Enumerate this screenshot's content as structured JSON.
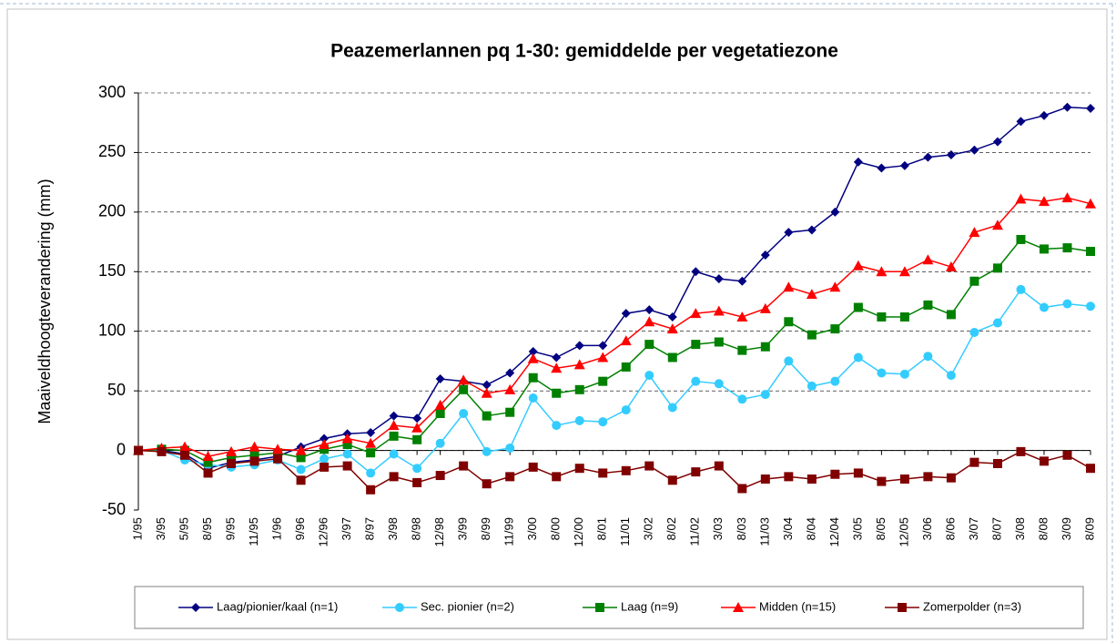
{
  "chart_data": {
    "type": "line",
    "title": "Peazemerlannen pq 1-30: gemiddelde per vegetatiezone",
    "y_label": "Maaiveldhoogteverandering (mm)",
    "categories": [
      "1/95",
      "3/95",
      "5/95",
      "8/95",
      "9/95",
      "11/95",
      "1/96",
      "9/96",
      "12/96",
      "3/97",
      "8/97",
      "3/98",
      "8/98",
      "12/98",
      "3/99",
      "8/99",
      "11/99",
      "3/00",
      "8/00",
      "12/00",
      "8/01",
      "11/01",
      "3/02",
      "8/02",
      "11/02",
      "3/03",
      "8/03",
      "11/03",
      "3/04",
      "8/04",
      "12/04",
      "3/05",
      "8/05",
      "12/05",
      "3/06",
      "8/06",
      "3/07",
      "8/07",
      "3/08",
      "8/08",
      "3/09",
      "8/09"
    ],
    "series": [
      {
        "name": "Laag/pionier/kaal (n=1)",
        "color": "#000080",
        "marker": "diamond",
        "values": [
          0,
          0,
          -3,
          -15,
          -10,
          -8,
          -5,
          3,
          10,
          14,
          15,
          29,
          27,
          60,
          58,
          55,
          65,
          83,
          78,
          88,
          88,
          115,
          118,
          112,
          150,
          144,
          142,
          164,
          183,
          185,
          200,
          242,
          237,
          239,
          246,
          248,
          252,
          259,
          276,
          281,
          288,
          287
        ]
      },
      {
        "name": "Sec. pionier (n=2)",
        "color": "#33ccff",
        "marker": "circle",
        "values": [
          0,
          0,
          -8,
          -12,
          -14,
          -12,
          -8,
          -16,
          -7,
          -3,
          -19,
          -3,
          -15,
          6,
          31,
          -1,
          2,
          44,
          21,
          25,
          24,
          34,
          63,
          36,
          58,
          56,
          43,
          47,
          75,
          54,
          58,
          78,
          65,
          64,
          79,
          63,
          99,
          107,
          135,
          120,
          123,
          121
        ]
      },
      {
        "name": "Laag (n=9)",
        "color": "#008000",
        "marker": "square",
        "values": [
          0,
          1,
          0,
          -10,
          -6,
          -4,
          -2,
          -6,
          1,
          5,
          -2,
          12,
          9,
          31,
          51,
          29,
          32,
          61,
          48,
          51,
          58,
          70,
          89,
          78,
          89,
          91,
          84,
          87,
          108,
          97,
          102,
          120,
          112,
          112,
          122,
          114,
          142,
          153,
          177,
          169,
          170,
          167
        ]
      },
      {
        "name": "Midden (n=15)",
        "color": "#ff0000",
        "marker": "triangle",
        "values": [
          0,
          2,
          3,
          -5,
          -1,
          3,
          1,
          0,
          5,
          10,
          6,
          21,
          19,
          38,
          59,
          48,
          51,
          77,
          69,
          72,
          78,
          92,
          108,
          102,
          115,
          117,
          112,
          119,
          137,
          131,
          137,
          155,
          150,
          150,
          160,
          154,
          183,
          189,
          211,
          209,
          212,
          207
        ]
      },
      {
        "name": "Zomerpolder (n=3)",
        "color": "#800000",
        "marker": "square",
        "values": [
          0,
          -1,
          -4,
          -19,
          -11,
          -9,
          -7,
          -25,
          -14,
          -13,
          -33,
          -22,
          -27,
          -21,
          -13,
          -28,
          -22,
          -14,
          -22,
          -15,
          -19,
          -17,
          -13,
          -25,
          -18,
          -13,
          -32,
          -24,
          -22,
          -24,
          -20,
          -19,
          -26,
          -24,
          -22,
          -23,
          -10,
          -11,
          -1,
          -9,
          -4,
          -15
        ]
      }
    ],
    "ylim": [
      -50,
      300
    ],
    "yticks": [
      -50,
      0,
      50,
      100,
      150,
      200,
      250,
      300
    ],
    "grid": true,
    "legend": "bottom"
  }
}
